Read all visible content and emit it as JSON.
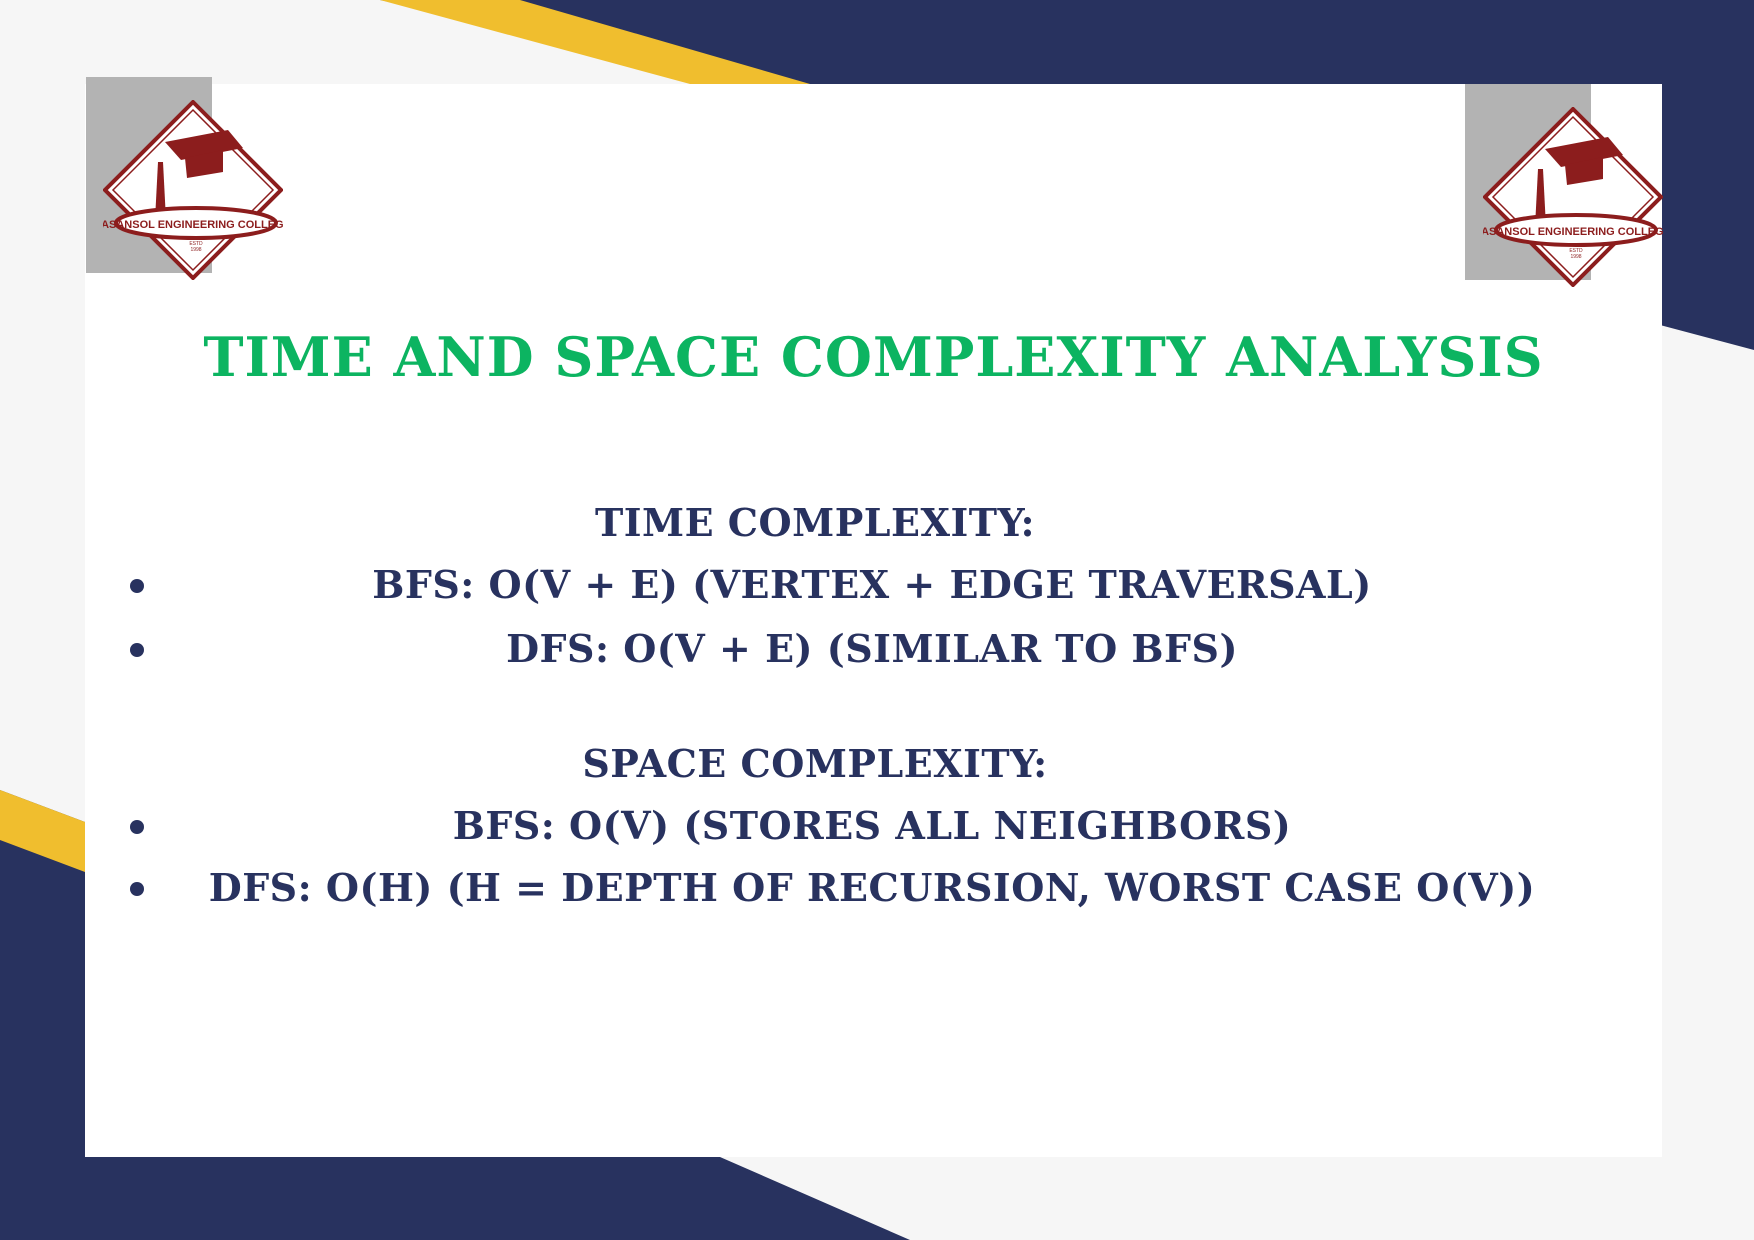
{
  "colors": {
    "navy": "#28325f",
    "yellow": "#f0be2e",
    "offwhite": "#f6f6f6",
    "card": "#ffffff",
    "title": "#0cb461",
    "text": "#28325f",
    "logo_maroon": "#8c1d1d",
    "logo_bg": "#b3b3b3"
  },
  "logo": {
    "name": "ASANSOL ENGINEERING COLLEGE",
    "estd": "ESTD",
    "year": "1998"
  },
  "title": "TIME AND SPACE COMPLEXITY ANALYSIS",
  "sections": [
    {
      "heading": "TIME COMPLEXITY:",
      "items": [
        "BFS: O(V + E) (VERTEX + EDGE TRAVERSAL)",
        "DFS: O(V + E) (SIMILAR TO BFS)"
      ]
    },
    {
      "heading": "SPACE COMPLEXITY:",
      "items": [
        "BFS: O(V) (STORES ALL NEIGHBORS)",
        "DFS: O(H) (H = DEPTH OF RECURSION, WORST CASE O(V))"
      ]
    }
  ]
}
